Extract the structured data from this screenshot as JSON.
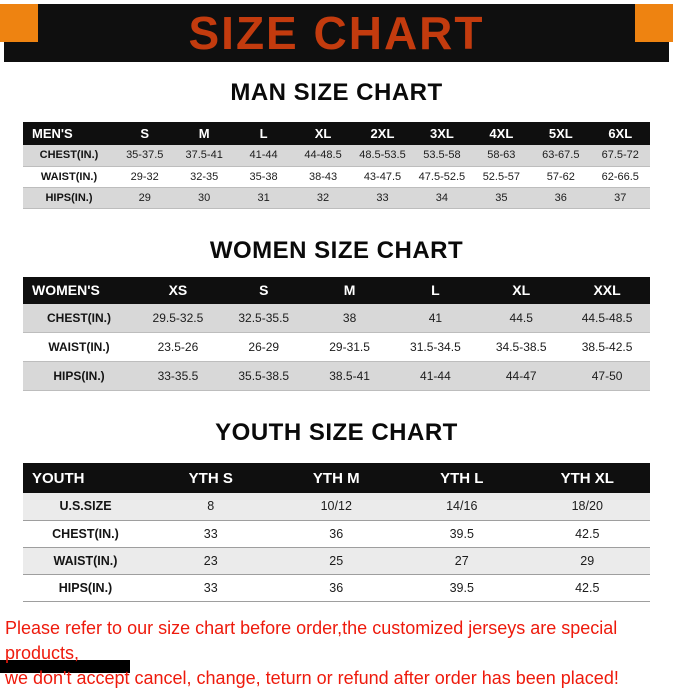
{
  "page": {
    "title": "SIZE CHART",
    "footer_line1": "Please refer to our size chart before order,the customized jerseys are special products,",
    "footer_line2": "we don't accept cancel, change, teturn or refund after order has been placed!"
  },
  "colors": {
    "title_text": "#c33b0e",
    "corner_square": "#ee8311",
    "banner_bg": "#0f0f0f",
    "row_alt_bg": "#d8d8d8",
    "footer_text": "#ee1a0c"
  },
  "sections": [
    {
      "id": "man",
      "heading": "MAN SIZE CHART",
      "table": {
        "header": [
          "MEN'S",
          "S",
          "M",
          "L",
          "XL",
          "2XL",
          "3XL",
          "4XL",
          "5XL",
          "6XL"
        ],
        "rows": [
          [
            "CHEST(IN.)",
            "35-37.5",
            "37.5-41",
            "41-44",
            "44-48.5",
            "48.5-53.5",
            "53.5-58",
            "58-63",
            "63-67.5",
            "67.5-72"
          ],
          [
            "WAIST(IN.)",
            "29-32",
            "32-35",
            "35-38",
            "38-43",
            "43-47.5",
            "47.5-52.5",
            "52.5-57",
            "57-62",
            "62-66.5"
          ],
          [
            "HIPS(IN.)",
            "29",
            "30",
            "31",
            "32",
            "33",
            "34",
            "35",
            "36",
            "37"
          ]
        ]
      }
    },
    {
      "id": "women",
      "heading": "WOMEN SIZE CHART",
      "table": {
        "header": [
          "WOMEN'S",
          "XS",
          "S",
          "M",
          "L",
          "XL",
          "XXL"
        ],
        "rows": [
          [
            "CHEST(IN.)",
            "29.5-32.5",
            "32.5-35.5",
            "38",
            "41",
            "44.5",
            "44.5-48.5"
          ],
          [
            "WAIST(IN.)",
            "23.5-26",
            "26-29",
            "29-31.5",
            "31.5-34.5",
            "34.5-38.5",
            "38.5-42.5"
          ],
          [
            "HIPS(IN.)",
            "33-35.5",
            "35.5-38.5",
            "38.5-41",
            "41-44",
            "44-47",
            "47-50"
          ]
        ]
      }
    },
    {
      "id": "youth",
      "heading": "YOUTH SIZE CHART",
      "table": {
        "header": [
          "YOUTH",
          "YTH S",
          "YTH M",
          "YTH L",
          "YTH XL"
        ],
        "rows": [
          [
            "U.S.SIZE",
            "8",
            "10/12",
            "14/16",
            "18/20"
          ],
          [
            "CHEST(IN.)",
            "33",
            "36",
            "39.5",
            "42.5"
          ],
          [
            "WAIST(IN.)",
            "23",
            "25",
            "27",
            "29"
          ],
          [
            "HIPS(IN.)",
            "33",
            "36",
            "39.5",
            "42.5"
          ]
        ]
      }
    }
  ]
}
